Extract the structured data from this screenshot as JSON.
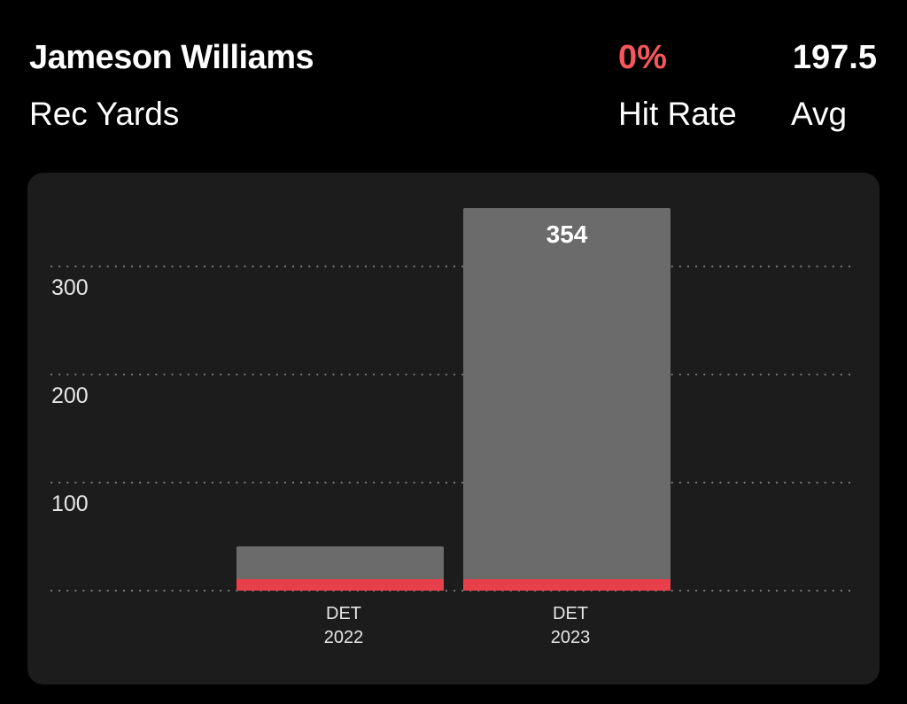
{
  "header": {
    "player_name": "Jameson Williams",
    "stat_label": "Rec Yards",
    "hit_rate": {
      "value": "0%",
      "label": "Hit Rate",
      "color": "#f5575c"
    },
    "avg": {
      "value": "197.5",
      "label": "Avg"
    }
  },
  "colors": {
    "background": "#000000",
    "card": "#1c1c1c",
    "bar": "#6b6b6b",
    "line_marker": "#e8404a",
    "grid": "#7a7a7a"
  },
  "chart_data": {
    "type": "bar",
    "categories": [
      {
        "team": "DET",
        "year": "2022"
      },
      {
        "team": "DET",
        "year": "2023"
      }
    ],
    "values": [
      41,
      354
    ],
    "data_labels": [
      "",
      "354"
    ],
    "yticks": [
      100,
      200,
      300
    ],
    "ylim": [
      0,
      354
    ],
    "title": "",
    "xlabel": "",
    "ylabel": "",
    "grid": true
  }
}
